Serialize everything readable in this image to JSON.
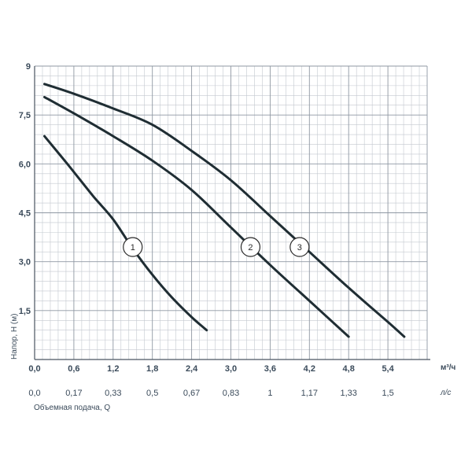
{
  "chart_data": {
    "type": "line",
    "xlabel": "Объемная подача, Q",
    "ylabel": "Напор, H (м)",
    "x_unit": "м³/ч",
    "x2_unit": "л/с",
    "xlim": [
      0,
      6.0
    ],
    "ylim": [
      0,
      9
    ],
    "x_ticks": [
      "0,0",
      "0,6",
      "1,2",
      "1,8",
      "2,4",
      "3,0",
      "3,6",
      "4,2",
      "4,8",
      "5,4"
    ],
    "x_tick_values": [
      0,
      0.6,
      1.2,
      1.8,
      2.4,
      3.0,
      3.6,
      4.2,
      4.8,
      5.4
    ],
    "x2_ticks": [
      "0,0",
      "0,17",
      "0,33",
      "0,5",
      "0,67",
      "0,83",
      "1",
      "1,17",
      "1,33",
      "1,5"
    ],
    "x2_tick_values": [
      0,
      0.6,
      1.2,
      1.8,
      2.4,
      3.0,
      3.6,
      4.2,
      4.8,
      5.4
    ],
    "y_ticks": [
      "1,5",
      "3,0",
      "4,5",
      "6,0",
      "7,5",
      "9"
    ],
    "y_tick_values": [
      1.5,
      3.0,
      4.5,
      6.0,
      7.5,
      9
    ],
    "grid": true,
    "series": [
      {
        "name": "1",
        "x": [
          0.15,
          0.5,
          0.9,
          1.2,
          1.5,
          1.8,
          2.1,
          2.4,
          2.63
        ],
        "y": [
          6.85,
          6.0,
          5.0,
          4.3,
          3.4,
          2.6,
          1.9,
          1.3,
          0.9
        ],
        "label_pos": [
          1.5,
          3.45
        ]
      },
      {
        "name": "2",
        "x": [
          0.15,
          0.6,
          1.2,
          1.8,
          2.4,
          3.0,
          3.6,
          4.2,
          4.8
        ],
        "y": [
          8.05,
          7.55,
          6.85,
          6.1,
          5.2,
          4.05,
          2.9,
          1.8,
          0.7
        ],
        "label_pos": [
          3.3,
          3.45
        ]
      },
      {
        "name": "3",
        "x": [
          0.15,
          0.6,
          1.2,
          1.8,
          2.4,
          3.0,
          3.6,
          4.2,
          4.8,
          5.4,
          5.65
        ],
        "y": [
          8.45,
          8.15,
          7.7,
          7.2,
          6.4,
          5.5,
          4.4,
          3.3,
          2.2,
          1.15,
          0.7
        ],
        "label_pos": [
          4.05,
          3.45
        ]
      }
    ]
  }
}
